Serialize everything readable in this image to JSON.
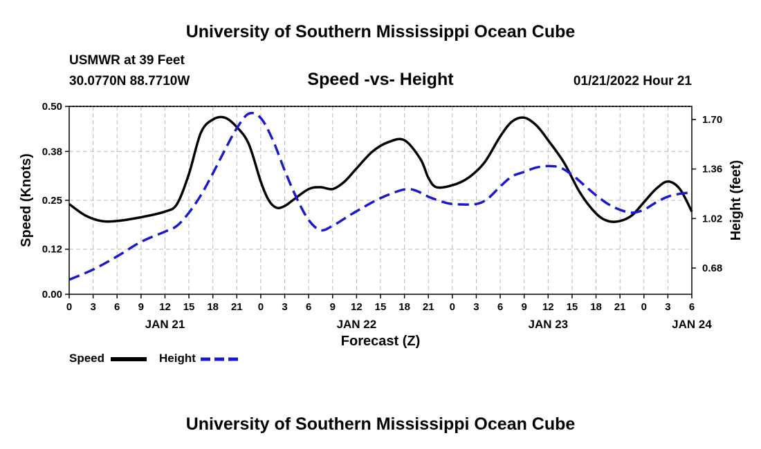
{
  "title_top": "University of Southern Mississippi Ocean Cube",
  "title_bottom": "University of Southern Mississippi Ocean Cube",
  "station": "USMWR at 39 Feet",
  "coords": "30.0770N  88.7710W",
  "subtitle": "Speed -vs- Height",
  "timestamp": "01/21/2022 Hour 21",
  "legend": {
    "speed_label": "Speed",
    "height_label": "Height"
  },
  "colors": {
    "speed": "#000000",
    "height": "#1a1acc",
    "grid": "#b8b8b8"
  },
  "chart_data": {
    "type": "line",
    "title": "Speed -vs- Height",
    "xlabel": "Forecast (Z)",
    "ylabel": "Speed (Knots)",
    "y2label": "Height (feet)",
    "ylim": [
      0,
      0.5
    ],
    "y2lim": [
      0.5,
      1.79
    ],
    "yticks": [
      "0.00",
      "0.12",
      "0.25",
      "0.38",
      "0.50"
    ],
    "y2ticks": [
      "0.68",
      "1.02",
      "1.36",
      "1.70"
    ],
    "x_tick_labels": [
      "0",
      "3",
      "6",
      "9",
      "12",
      "15",
      "18",
      "21",
      "0",
      "3",
      "6",
      "9",
      "12",
      "15",
      "18",
      "21",
      "0",
      "3",
      "6",
      "9",
      "12",
      "15",
      "18",
      "21",
      "0",
      "3",
      "6"
    ],
    "date_labels": [
      {
        "label": "JAN 21",
        "hour": 12
      },
      {
        "label": "JAN 22",
        "hour": 36
      },
      {
        "label": "JAN 23",
        "hour": 60
      },
      {
        "label": "JAN 24",
        "hour": 78
      }
    ],
    "x_range_hours": [
      0,
      78
    ],
    "series": [
      {
        "name": "Speed",
        "axis": "left",
        "x": [
          0,
          2,
          4,
          6,
          9,
          12,
          13.5,
          15,
          16.5,
          18,
          19.5,
          21,
          22.5,
          24,
          25,
          26,
          27,
          28,
          30,
          31.5,
          33,
          34.5,
          36,
          38,
          40,
          42,
          44,
          45,
          46,
          48,
          50,
          52,
          54,
          55.5,
          57,
          58.5,
          60,
          62,
          64,
          66,
          67.5,
          69,
          70.5,
          72,
          73.5,
          75,
          76.5,
          78
        ],
        "values": [
          0.24,
          0.21,
          0.195,
          0.195,
          0.205,
          0.22,
          0.24,
          0.32,
          0.43,
          0.465,
          0.47,
          0.445,
          0.4,
          0.3,
          0.25,
          0.23,
          0.235,
          0.25,
          0.28,
          0.285,
          0.28,
          0.3,
          0.335,
          0.38,
          0.405,
          0.41,
          0.36,
          0.31,
          0.285,
          0.29,
          0.31,
          0.35,
          0.42,
          0.46,
          0.47,
          0.45,
          0.41,
          0.35,
          0.27,
          0.215,
          0.195,
          0.195,
          0.21,
          0.245,
          0.28,
          0.3,
          0.28,
          0.22
        ]
      },
      {
        "name": "Height",
        "axis": "right",
        "x": [
          0,
          3,
          6,
          9,
          12,
          13.5,
          15,
          16.5,
          18,
          19.5,
          21,
          22.5,
          24,
          25.5,
          27,
          28.5,
          30,
          31.5,
          33,
          34.5,
          36,
          39,
          42,
          43.5,
          45,
          46.5,
          48,
          51,
          52.5,
          54,
          55.5,
          57,
          58.5,
          60,
          61.5,
          63,
          64.5,
          66,
          67.5,
          69,
          70.5,
          72,
          73.5,
          75,
          76.5,
          78
        ],
        "values": [
          0.6,
          0.67,
          0.76,
          0.86,
          0.93,
          0.97,
          1.06,
          1.18,
          1.33,
          1.49,
          1.64,
          1.74,
          1.71,
          1.56,
          1.35,
          1.16,
          1.01,
          0.94,
          0.97,
          1.02,
          1.07,
          1.16,
          1.22,
          1.21,
          1.17,
          1.14,
          1.12,
          1.12,
          1.16,
          1.24,
          1.31,
          1.34,
          1.37,
          1.38,
          1.37,
          1.32,
          1.25,
          1.18,
          1.12,
          1.08,
          1.06,
          1.08,
          1.13,
          1.17,
          1.19,
          1.2
        ]
      }
    ]
  }
}
